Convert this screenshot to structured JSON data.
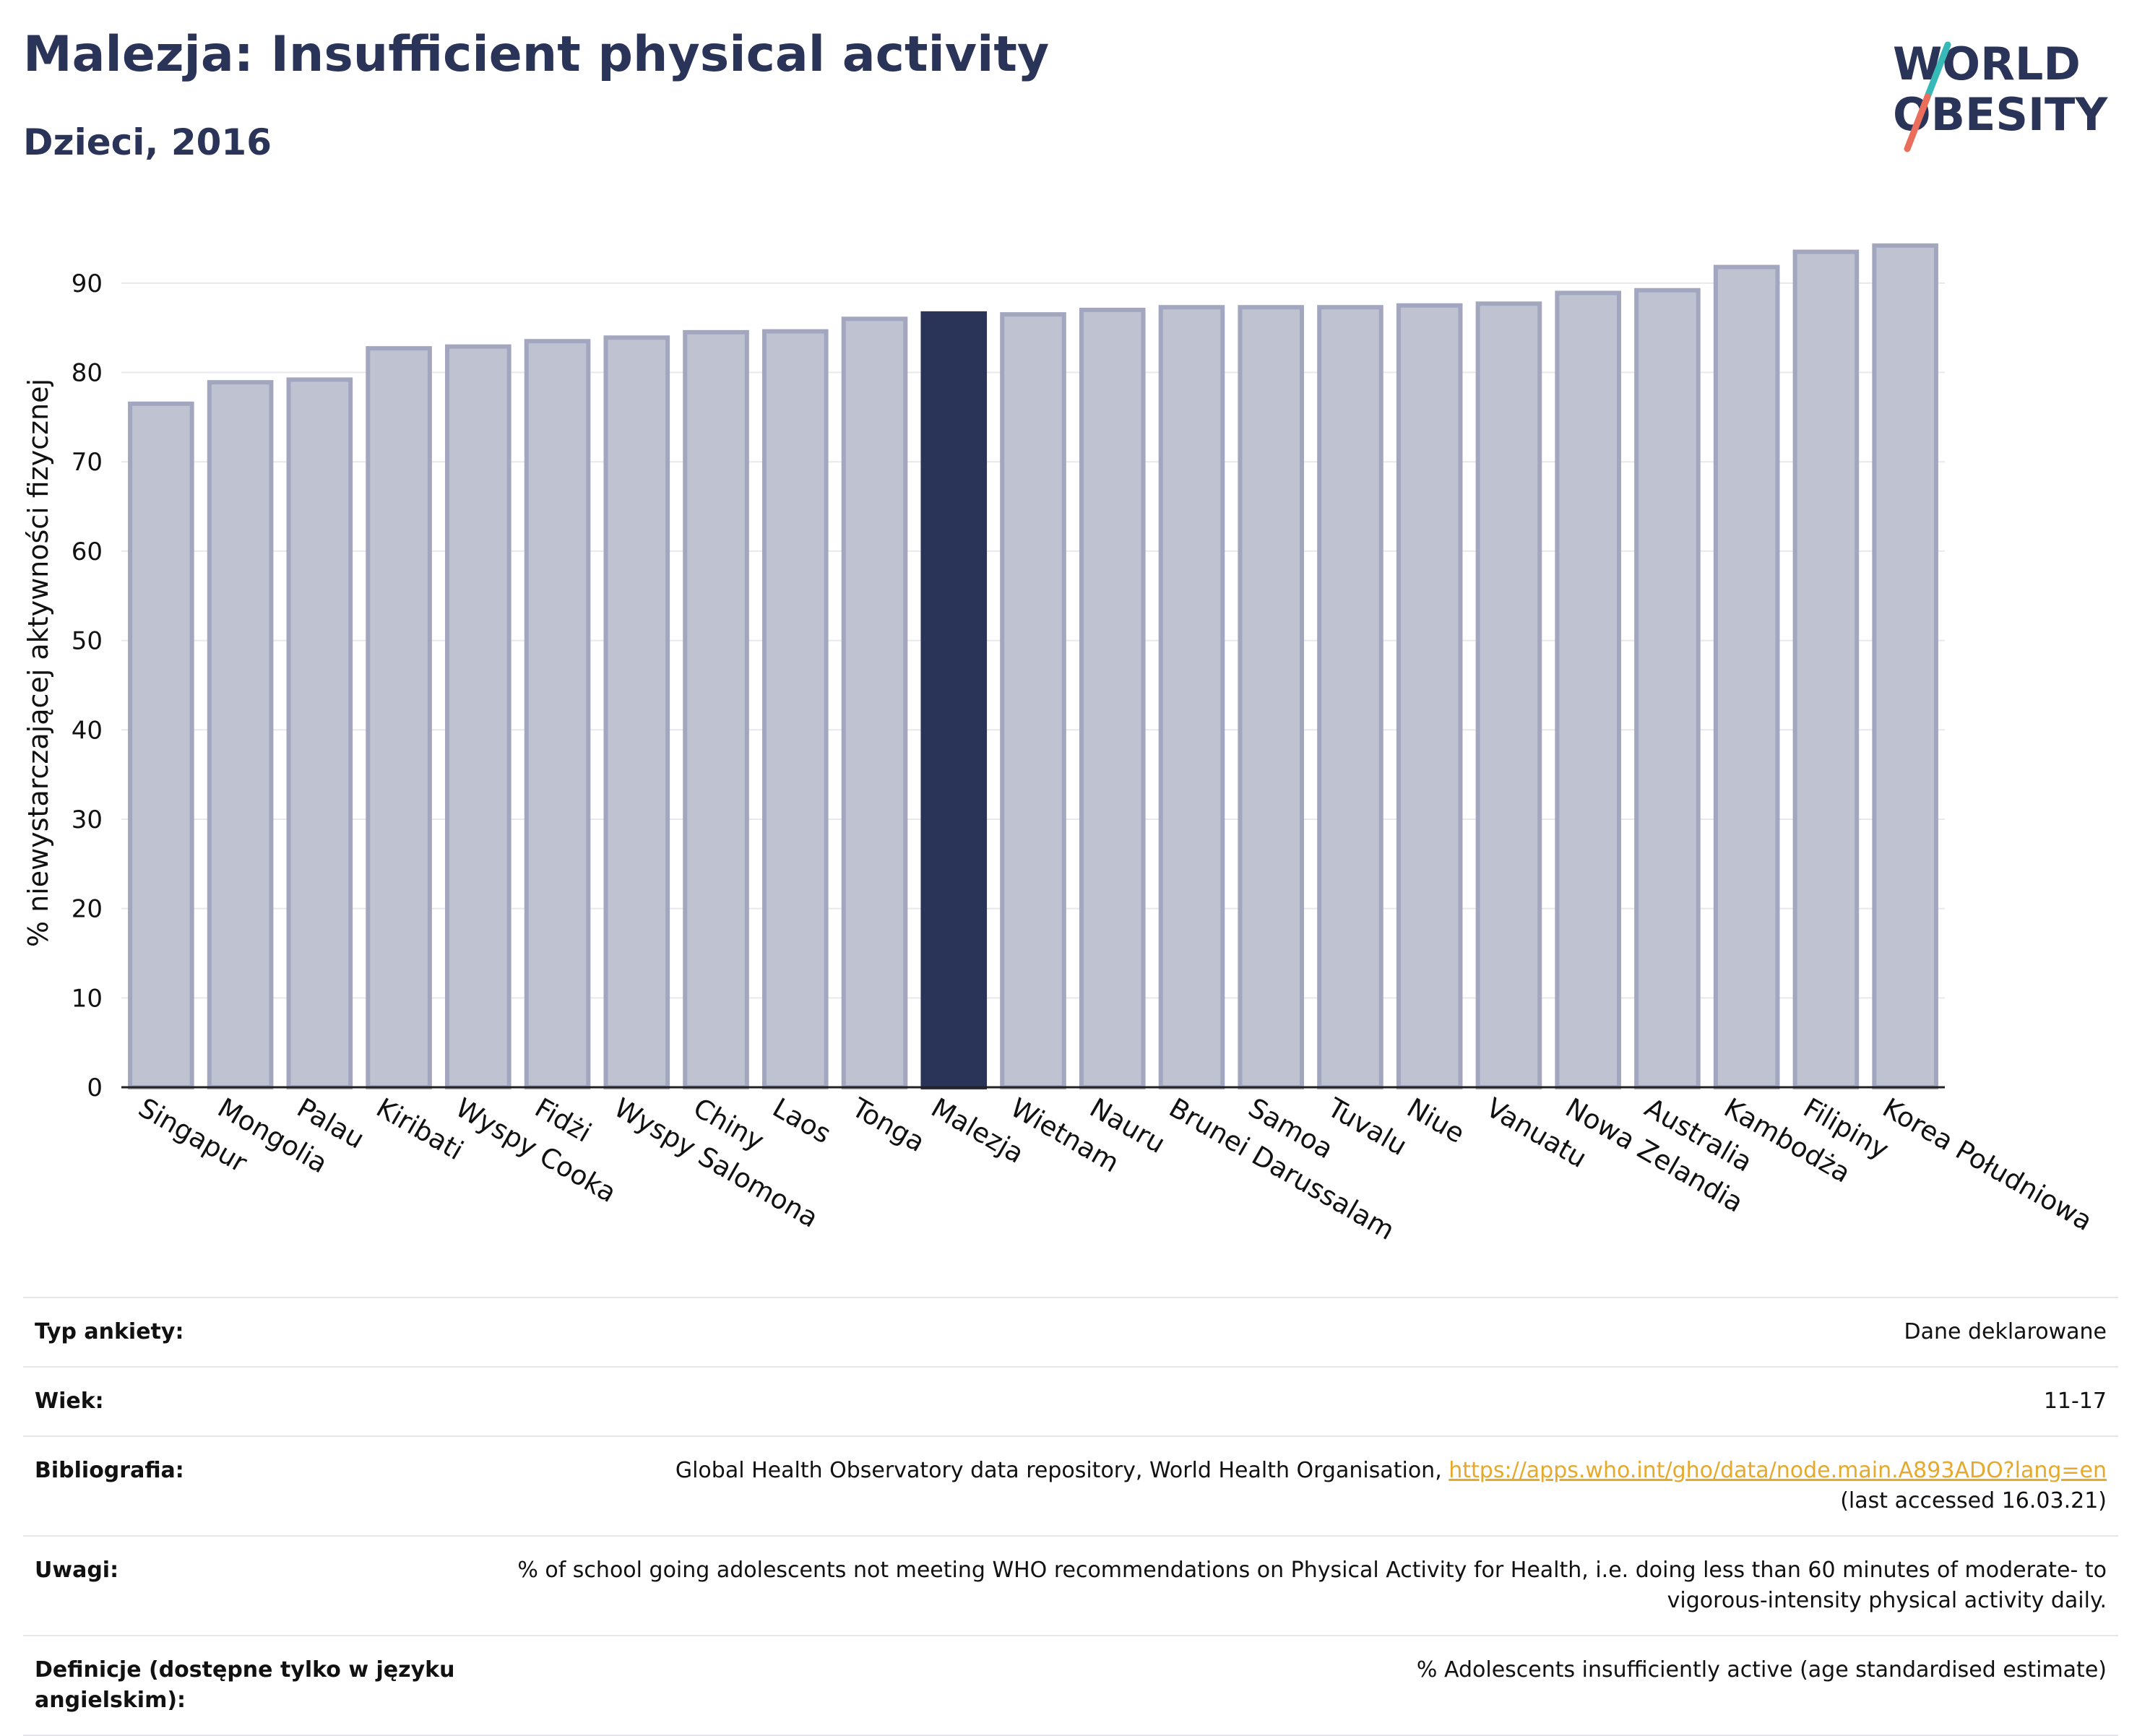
{
  "header": {
    "title": "Malezja: Insufficient physical activity",
    "subtitle": "Dzieci, 2016"
  },
  "logo": {
    "line1": "WORLD",
    "line2": "OBESITY"
  },
  "colors": {
    "highlight": "#2a3358",
    "bar_fill": "#bfc2d1",
    "bar_edge": "#a3a6bf",
    "text": "#2a3358",
    "link": "#e7a92c",
    "logo_teal": "#36b9b7",
    "logo_coral": "#ea6e5b"
  },
  "chart_data": {
    "type": "bar",
    "ylabel": "% niewystarczającej aktywności fizycznej",
    "ylim": [
      0,
      95
    ],
    "yticks": [
      0,
      10,
      20,
      30,
      40,
      50,
      60,
      70,
      80,
      90
    ],
    "grid": true,
    "highlight": "Malezja",
    "categories": [
      "Singapur",
      "Mongolia",
      "Palau",
      "Kiribati",
      "Wyspy Cooka",
      "Fidżi",
      "Wyspy Salomona",
      "Chiny",
      "Laos",
      "Tonga",
      "Malezja",
      "Wietnam",
      "Nauru",
      "Brunei Darussalam",
      "Samoa",
      "Tuvalu",
      "Niue",
      "Vanuatu",
      "Nowa Zelandia",
      "Australia",
      "Kambodża",
      "Filipiny",
      "Korea Południowa"
    ],
    "values": [
      76.5,
      78.9,
      79.2,
      82.7,
      82.9,
      83.5,
      83.9,
      84.5,
      84.6,
      86.0,
      86.6,
      86.5,
      87.0,
      87.3,
      87.3,
      87.3,
      87.5,
      87.7,
      88.9,
      89.2,
      91.8,
      93.5,
      94.2
    ]
  },
  "details": [
    {
      "label": "Typ ankiety:",
      "value": "Dane deklarowane"
    },
    {
      "label": "Wiek:",
      "value": "11-17"
    },
    {
      "label": "Bibliografia:",
      "value": "Global Health Observatory data repository, World Health Organisation, ",
      "link": "https://apps.who.int/gho/data/node.main.A893ADO?lang=en",
      "value2": "(last accessed 16.03.21)"
    },
    {
      "label": "Uwagi:",
      "value": "% of school going adolescents not meeting WHO recommendations on Physical Activity for Health, i.e. doing less than 60 minutes of moderate- to vigorous-intensity physical activity daily."
    },
    {
      "label": "Definicje (dostępne tylko w języku angielskim):",
      "value": "% Adolescents insufficiently active (age standardised estimate)"
    }
  ]
}
